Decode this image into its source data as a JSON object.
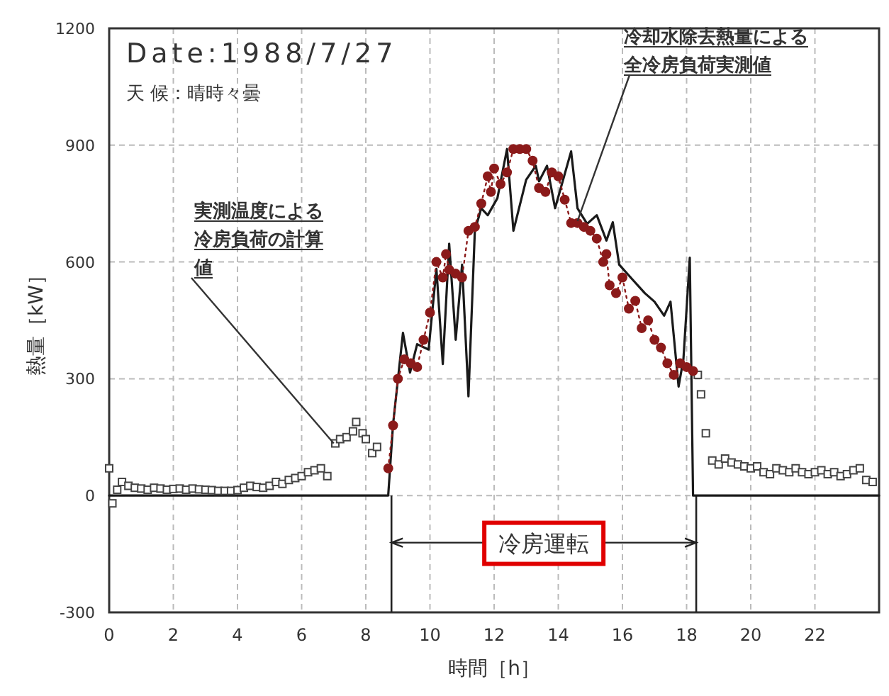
{
  "chart_data": {
    "type": "line",
    "title": "Date:1988/7/27",
    "subtitle": "天 候：晴時々曇",
    "xlabel": "時間［h］",
    "ylabel": "熱量［kW］",
    "xlim": [
      0,
      24
    ],
    "ylim": [
      -300,
      1200
    ],
    "xticks": [
      0,
      2,
      4,
      6,
      8,
      10,
      12,
      14,
      16,
      18,
      20,
      22
    ],
    "yticks": [
      -300,
      0,
      300,
      600,
      900,
      1200
    ],
    "grid": true,
    "annotations": [
      {
        "text": "実測温度による冷房負荷の計算値",
        "x": 7.0,
        "y": 134
      },
      {
        "text": "冷却水除去熱量による全冷房負荷実測値",
        "x": 14.6,
        "y": 705
      },
      "冷房運転"
    ],
    "ref_lines": [
      {
        "axis": "x",
        "value": 8.8,
        "color": "#222222"
      },
      {
        "axis": "x",
        "value": 18.3,
        "color": "#222222"
      }
    ],
    "series": [
      {
        "type": "line",
        "color": "#1a1a1a",
        "marker": "none",
        "x": [
          0,
          8.7,
          8.85,
          9.16,
          9.38,
          9.6,
          9.96,
          10.2,
          10.4,
          10.6,
          10.8,
          11.0,
          11.2,
          11.4,
          11.6,
          11.8,
          12.1,
          12.4,
          12.6,
          13.0,
          13.3,
          13.4,
          13.65,
          13.9,
          14.4,
          14.6,
          14.9,
          15.2,
          15.5,
          15.7,
          15.9,
          16.3,
          16.7,
          17.0,
          17.3,
          17.5,
          17.75,
          17.9,
          18.1,
          18.2,
          24
        ],
        "values": [
          0,
          0,
          182,
          418,
          316,
          389,
          375,
          582,
          338,
          647,
          400,
          593,
          255,
          680,
          738,
          720,
          764,
          890,
          680,
          811,
          847,
          807,
          847,
          738,
          884,
          738,
          698,
          720,
          655,
          702,
          593,
          556,
          520,
          498,
          462,
          498,
          280,
          350,
          611,
          0,
          0
        ]
      },
      {
        "type": "scatter",
        "color": "#444444",
        "marker": "square",
        "x": [
          0,
          0.1,
          0.25,
          0.4,
          0.6,
          0.8,
          1.0,
          1.2,
          1.4,
          1.6,
          1.8,
          2.0,
          2.2,
          2.4,
          2.6,
          2.8,
          3.0,
          3.2,
          3.4,
          3.6,
          3.8,
          4.0,
          4.2,
          4.4,
          4.6,
          4.8,
          5.0,
          5.2,
          5.4,
          5.6,
          5.8,
          6.0,
          6.2,
          6.4,
          6.6,
          6.8,
          7.05,
          7.2,
          7.4,
          7.6,
          7.7,
          7.9,
          8.0,
          8.2,
          8.35,
          18.35,
          18.45,
          18.6,
          18.8,
          19.0,
          19.2,
          19.4,
          19.6,
          19.8,
          20.0,
          20.2,
          20.4,
          20.6,
          20.8,
          21.0,
          21.2,
          21.4,
          21.6,
          21.8,
          22.0,
          22.2,
          22.4,
          22.6,
          22.8,
          23.0,
          23.2,
          23.4,
          23.6,
          23.8
        ],
        "values": [
          70,
          -20,
          15,
          35,
          25,
          20,
          18,
          15,
          20,
          18,
          15,
          17,
          18,
          15,
          18,
          16,
          15,
          14,
          12,
          12,
          12,
          14,
          20,
          25,
          22,
          20,
          25,
          35,
          30,
          40,
          45,
          50,
          60,
          65,
          70,
          50,
          134,
          145,
          150,
          165,
          189,
          160,
          145,
          109,
          125,
          310,
          260,
          160,
          90,
          80,
          95,
          85,
          80,
          75,
          70,
          75,
          60,
          55,
          70,
          65,
          60,
          70,
          60,
          55,
          60,
          65,
          55,
          60,
          50,
          55,
          65,
          70,
          40,
          35
        ]
      },
      {
        "type": "line",
        "color": "#8b1a1a",
        "marker": "circle",
        "line_style": "dotted",
        "x": [
          8.7,
          8.85,
          9.0,
          9.2,
          9.4,
          9.6,
          9.8,
          10.0,
          10.2,
          10.4,
          10.5,
          10.6,
          10.8,
          11.0,
          11.2,
          11.4,
          11.6,
          11.8,
          11.9,
          12.0,
          12.2,
          12.4,
          12.6,
          12.8,
          13.0,
          13.2,
          13.4,
          13.6,
          13.8,
          14.0,
          14.2,
          14.4,
          14.6,
          14.8,
          15.0,
          15.2,
          15.4,
          15.5,
          15.6,
          15.8,
          16.0,
          16.2,
          16.4,
          16.6,
          16.8,
          17.0,
          17.2,
          17.4,
          17.6,
          17.8,
          18.0,
          18.2
        ],
        "values": [
          70,
          180,
          300,
          350,
          340,
          330,
          400,
          470,
          600,
          560,
          620,
          580,
          570,
          560,
          680,
          690,
          750,
          820,
          780,
          840,
          800,
          830,
          890,
          890,
          890,
          860,
          790,
          780,
          830,
          820,
          760,
          700,
          700,
          690,
          680,
          660,
          600,
          620,
          540,
          520,
          560,
          480,
          500,
          430,
          450,
          400,
          380,
          340,
          310,
          340,
          330,
          320
        ]
      }
    ]
  }
}
